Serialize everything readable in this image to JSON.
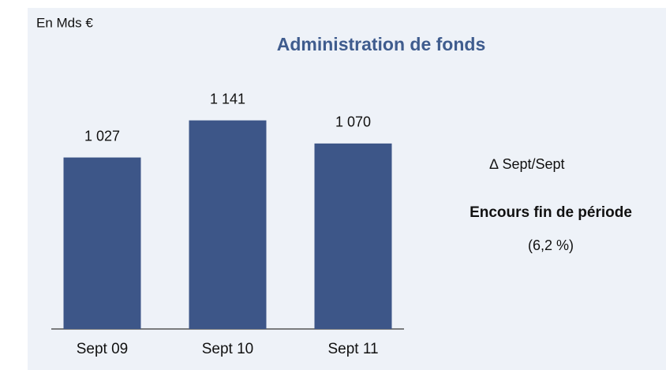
{
  "unit_label": "En Mds €",
  "chart_data": {
    "type": "bar",
    "title": "Administration de fonds",
    "categories": [
      "Sept 09",
      "Sept 10",
      "Sept 11"
    ],
    "values": [
      1027,
      1141,
      1070
    ],
    "value_labels": [
      "1 027",
      "1 141",
      "1 070"
    ],
    "color": "#3d5688",
    "ylim": [
      500,
      1300
    ]
  },
  "side_panel": {
    "change_label": "∆  Sept/Sept",
    "metric": "Encours fin de période",
    "change_value": "(6,2 %)"
  }
}
